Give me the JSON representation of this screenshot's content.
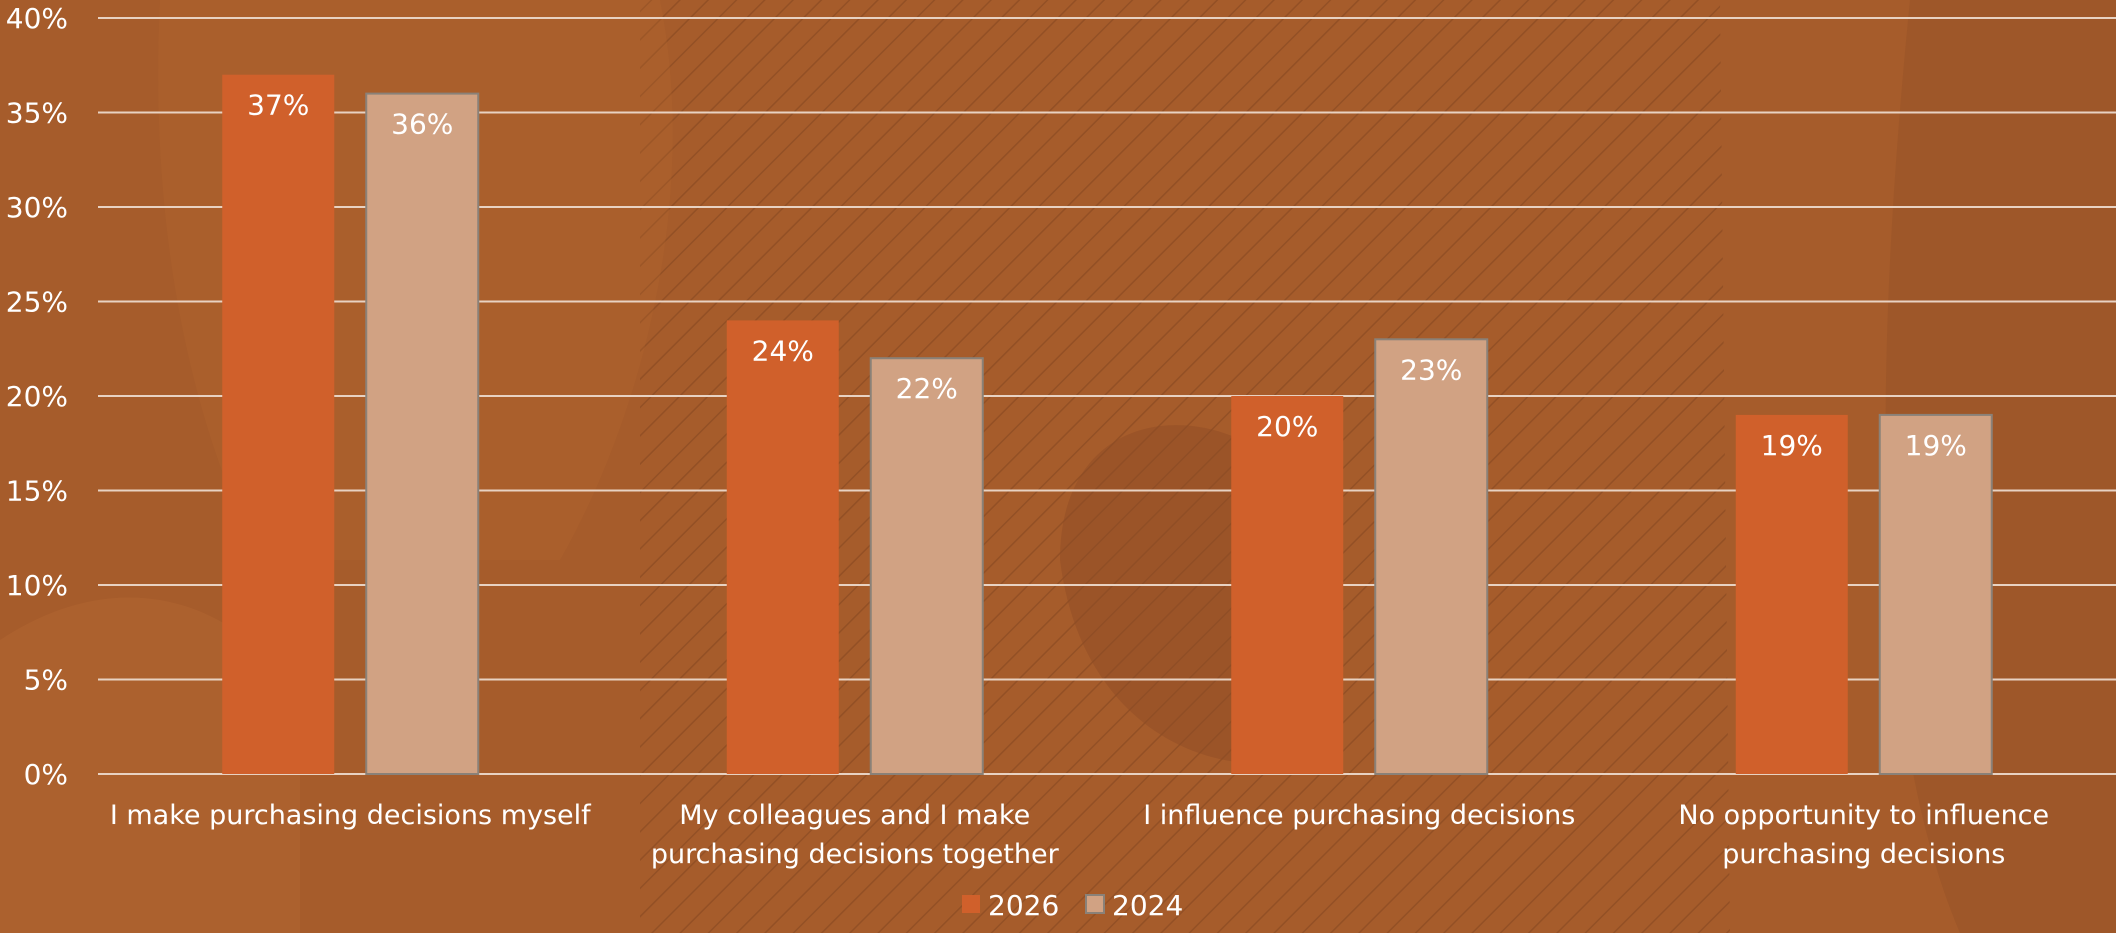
{
  "chart_data": {
    "type": "bar",
    "categories": [
      [
        "I make purchasing decisions myself"
      ],
      [
        "My colleagues and I make",
        "purchasing decisions together"
      ],
      [
        "I influence purchasing decisions"
      ],
      [
        "No opportunity to influence",
        "purchasing decisions"
      ]
    ],
    "series": [
      {
        "name": "2026",
        "values": [
          37,
          24,
          20,
          19
        ],
        "labels": [
          "37%",
          "24%",
          "20%",
          "19%"
        ],
        "color": "#d0602b"
      },
      {
        "name": "2024",
        "values": [
          36,
          22,
          23,
          19
        ],
        "labels": [
          "36%",
          "22%",
          "23%",
          "19%"
        ],
        "color": "#d1a283"
      }
    ],
    "ylim": [
      0,
      40
    ],
    "yticks": [
      0,
      5,
      10,
      15,
      20,
      25,
      30,
      35,
      40
    ],
    "ytick_labels": [
      "0%",
      "5%",
      "10%",
      "15%",
      "20%",
      "25%",
      "30%",
      "35%",
      "40%"
    ],
    "grid": true,
    "legend_position": "bottom-center",
    "colors": {
      "background": "#a65c2b",
      "gridline": "#e8d2c2",
      "text": "#ffffff",
      "bar_2024_border": "#8a8178"
    }
  }
}
